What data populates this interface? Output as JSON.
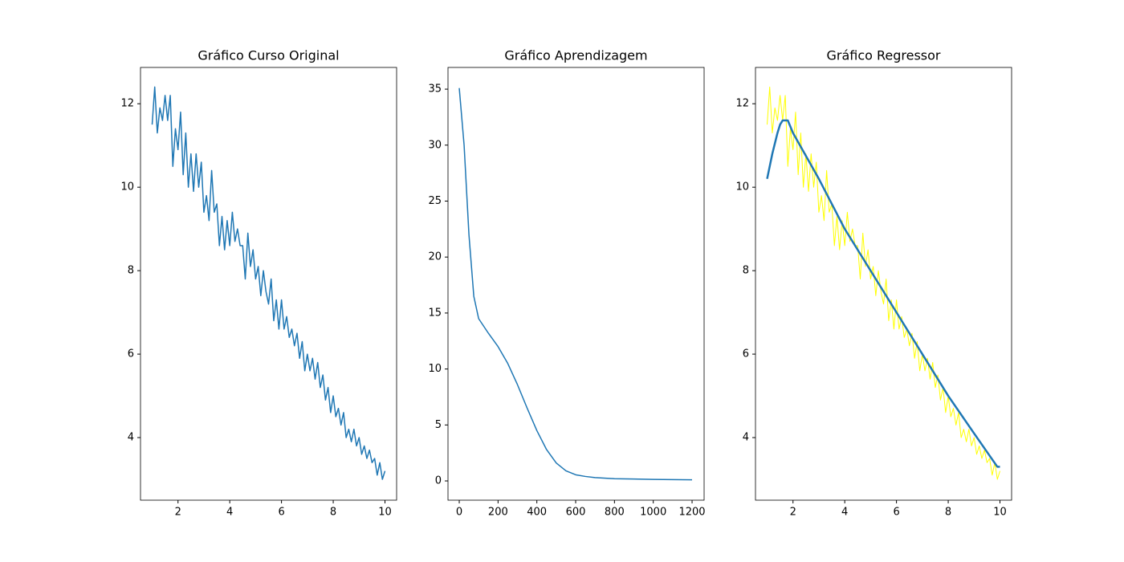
{
  "chart_data": [
    {
      "type": "line",
      "title": "Gráfico Curso Original",
      "xlim": [
        0.55,
        10.45
      ],
      "ylim": [
        2.5,
        12.87
      ],
      "xticks": [
        2,
        4,
        6,
        8,
        10
      ],
      "yticks": [
        4,
        6,
        8,
        10,
        12
      ],
      "series": [
        {
          "color": "#1f77b4",
          "width": 1.5,
          "x": [
            1.0,
            1.1,
            1.2,
            1.3,
            1.4,
            1.5,
            1.6,
            1.7,
            1.8,
            1.9,
            2.0,
            2.1,
            2.2,
            2.3,
            2.4,
            2.5,
            2.6,
            2.7,
            2.8,
            2.9,
            3.0,
            3.1,
            3.2,
            3.3,
            3.4,
            3.5,
            3.6,
            3.7,
            3.8,
            3.9,
            4.0,
            4.1,
            4.2,
            4.3,
            4.4,
            4.5,
            4.6,
            4.7,
            4.8,
            4.9,
            5.0,
            5.1,
            5.2,
            5.3,
            5.4,
            5.5,
            5.6,
            5.7,
            5.8,
            5.9,
            6.0,
            6.1,
            6.2,
            6.3,
            6.4,
            6.5,
            6.6,
            6.7,
            6.8,
            6.9,
            7.0,
            7.1,
            7.2,
            7.3,
            7.4,
            7.5,
            7.6,
            7.7,
            7.8,
            7.9,
            8.0,
            8.1,
            8.2,
            8.3,
            8.4,
            8.5,
            8.6,
            8.7,
            8.8,
            8.9,
            9.0,
            9.1,
            9.2,
            9.3,
            9.4,
            9.5,
            9.6,
            9.7,
            9.8,
            9.9,
            10.0
          ],
          "values": [
            11.5,
            12.4,
            11.3,
            11.9,
            11.6,
            12.2,
            11.6,
            12.2,
            10.5,
            11.4,
            10.9,
            11.8,
            10.3,
            11.3,
            10.0,
            10.8,
            9.9,
            10.8,
            10.0,
            10.6,
            9.4,
            9.8,
            9.2,
            10.4,
            9.4,
            9.6,
            8.6,
            9.3,
            8.5,
            9.2,
            8.6,
            9.4,
            8.7,
            9.0,
            8.6,
            8.6,
            7.8,
            8.9,
            8.1,
            8.5,
            7.8,
            8.1,
            7.4,
            8.0,
            7.5,
            7.2,
            7.8,
            6.8,
            7.3,
            6.6,
            7.3,
            6.6,
            6.9,
            6.4,
            6.6,
            6.2,
            6.5,
            5.9,
            6.3,
            5.6,
            6.0,
            5.6,
            5.9,
            5.4,
            5.8,
            5.2,
            5.5,
            4.9,
            5.2,
            4.6,
            5.0,
            4.5,
            4.7,
            4.3,
            4.6,
            4.0,
            4.2,
            3.9,
            4.2,
            3.8,
            4.0,
            3.6,
            3.8,
            3.5,
            3.7,
            3.4,
            3.5,
            3.1,
            3.4,
            3.0,
            3.2
          ]
        }
      ]
    },
    {
      "type": "line",
      "title": "Gráfico Aprendizagem",
      "xlim": [
        -58,
        1262
      ],
      "ylim": [
        -1.72,
        36.94
      ],
      "xticks": [
        0,
        200,
        400,
        600,
        800,
        1000,
        1200
      ],
      "yticks": [
        0,
        5,
        10,
        15,
        20,
        25,
        30,
        35
      ],
      "series": [
        {
          "color": "#1f77b4",
          "width": 1.5,
          "x": [
            0,
            25,
            50,
            75,
            100,
            150,
            200,
            250,
            300,
            350,
            400,
            450,
            500,
            550,
            600,
            650,
            700,
            800,
            900,
            1000,
            1100,
            1200
          ],
          "values": [
            35.1,
            30,
            22,
            16.5,
            14.5,
            13.2,
            12,
            10.5,
            8.6,
            6.5,
            4.5,
            2.8,
            1.6,
            0.9,
            0.55,
            0.4,
            0.3,
            0.2,
            0.17,
            0.14,
            0.12,
            0.1
          ]
        }
      ]
    },
    {
      "type": "line",
      "title": "Gráfico Regressor",
      "xlim": [
        0.55,
        10.45
      ],
      "ylim": [
        2.5,
        12.87
      ],
      "xticks": [
        2,
        4,
        6,
        8,
        10
      ],
      "yticks": [
        4,
        6,
        8,
        10,
        12
      ],
      "series": [
        {
          "color": "#ffff00",
          "width": 1,
          "x": [
            1.0,
            1.1,
            1.2,
            1.3,
            1.4,
            1.5,
            1.6,
            1.7,
            1.8,
            1.9,
            2.0,
            2.1,
            2.2,
            2.3,
            2.4,
            2.5,
            2.6,
            2.7,
            2.8,
            2.9,
            3.0,
            3.1,
            3.2,
            3.3,
            3.4,
            3.5,
            3.6,
            3.7,
            3.8,
            3.9,
            4.0,
            4.1,
            4.2,
            4.3,
            4.4,
            4.5,
            4.6,
            4.7,
            4.8,
            4.9,
            5.0,
            5.1,
            5.2,
            5.3,
            5.4,
            5.5,
            5.6,
            5.7,
            5.8,
            5.9,
            6.0,
            6.1,
            6.2,
            6.3,
            6.4,
            6.5,
            6.6,
            6.7,
            6.8,
            6.9,
            7.0,
            7.1,
            7.2,
            7.3,
            7.4,
            7.5,
            7.6,
            7.7,
            7.8,
            7.9,
            8.0,
            8.1,
            8.2,
            8.3,
            8.4,
            8.5,
            8.6,
            8.7,
            8.8,
            8.9,
            9.0,
            9.1,
            9.2,
            9.3,
            9.4,
            9.5,
            9.6,
            9.7,
            9.8,
            9.9,
            10.0
          ],
          "values": [
            11.5,
            12.4,
            11.3,
            11.9,
            11.6,
            12.2,
            11.6,
            12.2,
            10.5,
            11.4,
            10.9,
            11.8,
            10.3,
            11.3,
            10.0,
            10.8,
            9.9,
            10.8,
            10.0,
            10.6,
            9.4,
            9.8,
            9.2,
            10.4,
            9.4,
            9.6,
            8.6,
            9.3,
            8.5,
            9.2,
            8.6,
            9.4,
            8.7,
            9.0,
            8.6,
            8.6,
            7.8,
            8.9,
            8.1,
            8.5,
            7.8,
            8.1,
            7.4,
            8.0,
            7.5,
            7.2,
            7.8,
            6.8,
            7.3,
            6.6,
            7.3,
            6.6,
            6.9,
            6.4,
            6.6,
            6.2,
            6.5,
            5.9,
            6.3,
            5.6,
            6.0,
            5.6,
            5.9,
            5.4,
            5.8,
            5.2,
            5.5,
            4.9,
            5.2,
            4.6,
            5.0,
            4.5,
            4.7,
            4.3,
            4.6,
            4.0,
            4.2,
            3.9,
            4.2,
            3.8,
            4.0,
            3.6,
            3.8,
            3.5,
            3.7,
            3.4,
            3.5,
            3.1,
            3.4,
            3.0,
            3.2
          ]
        },
        {
          "color": "#1f77b4",
          "width": 2.5,
          "x": [
            1,
            1.2,
            1.4,
            1.5,
            1.6,
            1.7,
            1.8,
            2,
            3,
            4,
            5,
            6,
            7,
            8,
            9,
            9.9,
            10
          ],
          "values": [
            10.2,
            10.8,
            11.3,
            11.5,
            11.6,
            11.6,
            11.6,
            11.3,
            10.2,
            9.0,
            8.0,
            7.0,
            6.0,
            5.0,
            4.1,
            3.3,
            3.3
          ]
        }
      ]
    }
  ]
}
